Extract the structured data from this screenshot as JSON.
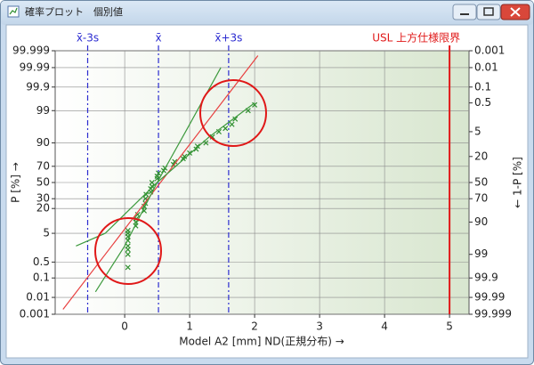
{
  "window": {
    "title": "確率プロット　個別値"
  },
  "chart_data": {
    "type": "probability",
    "xlabel": "Model A2 [mm]  ND(正規分布) →",
    "ylabel": "P [%] →",
    "y2label": "← 1-P [%]",
    "xlim": [
      -1.07,
      5.3
    ],
    "xticks": [
      0,
      1,
      2,
      3,
      4,
      5
    ],
    "ylim": [
      0.001,
      99.999
    ],
    "yscale": "probit",
    "yticks": [
      0.001,
      0.01,
      0.1,
      0.5,
      5,
      20,
      30,
      50,
      70,
      90,
      99,
      99.9,
      99.99,
      99.999
    ],
    "y2lim": [
      99.999,
      0.001
    ],
    "y2ticks": [
      0.001,
      0.01,
      0.1,
      0.5,
      5,
      20,
      50,
      70,
      90,
      99,
      99.9,
      99.99,
      99.999
    ],
    "grid": true,
    "series": [
      {
        "color": "#2f8f2f",
        "marker": "x",
        "x": [
          0.05,
          0.05,
          0.05,
          0.05,
          0.05,
          0.05,
          0.05,
          0.05,
          0.17,
          0.17,
          0.18,
          0.2,
          0.3,
          0.3,
          0.32,
          0.32,
          0.33,
          0.4,
          0.4,
          0.42,
          0.42,
          0.5,
          0.5,
          0.52,
          0.6,
          0.62,
          0.75,
          0.77,
          0.9,
          0.92,
          1.0,
          1.1,
          1.12,
          1.25,
          1.35,
          1.45,
          1.55,
          1.65,
          1.7,
          1.9,
          2.0
        ],
        "values": [
          0.3,
          1,
          1.5,
          2,
          3,
          4,
          5,
          6,
          8,
          10,
          12,
          15,
          18,
          22,
          25,
          30,
          35,
          38,
          42,
          45,
          50,
          55,
          58,
          62,
          65,
          68,
          72,
          75,
          78,
          80,
          83,
          86,
          88,
          90,
          93,
          95,
          96,
          97,
          98,
          99,
          99.4
        ]
      },
      {
        "color": "#e84040",
        "line": true,
        "x": [
          -0.95,
          2.05
        ],
        "values": [
          0.002,
          99.998
        ]
      },
      {
        "color": "#3d9a3d",
        "line": true,
        "x": [
          -0.45,
          0,
          0.5,
          1,
          1.48
        ],
        "values": [
          0.02,
          2,
          50,
          97,
          99.99
        ]
      },
      {
        "color": "#3d9a3d",
        "line": true,
        "x": [
          -0.75,
          -0.3,
          0.5,
          1.3,
          2.0
        ],
        "values": [
          2,
          5,
          50,
          93,
          99.5
        ]
      }
    ],
    "reference_lines": [
      {
        "label": "x̄-3s",
        "x": -0.57,
        "color": "#2b2bd0",
        "style": "dashdot"
      },
      {
        "label": "x̄",
        "x": 0.52,
        "color": "#2b2bd0",
        "style": "dashdot"
      },
      {
        "label": "x̄+3s",
        "x": 1.6,
        "color": "#2b2bd0",
        "style": "dashdot"
      },
      {
        "label": "USL 上方仕様限界",
        "x": 5,
        "color": "#e01818",
        "style": "solid"
      }
    ]
  }
}
